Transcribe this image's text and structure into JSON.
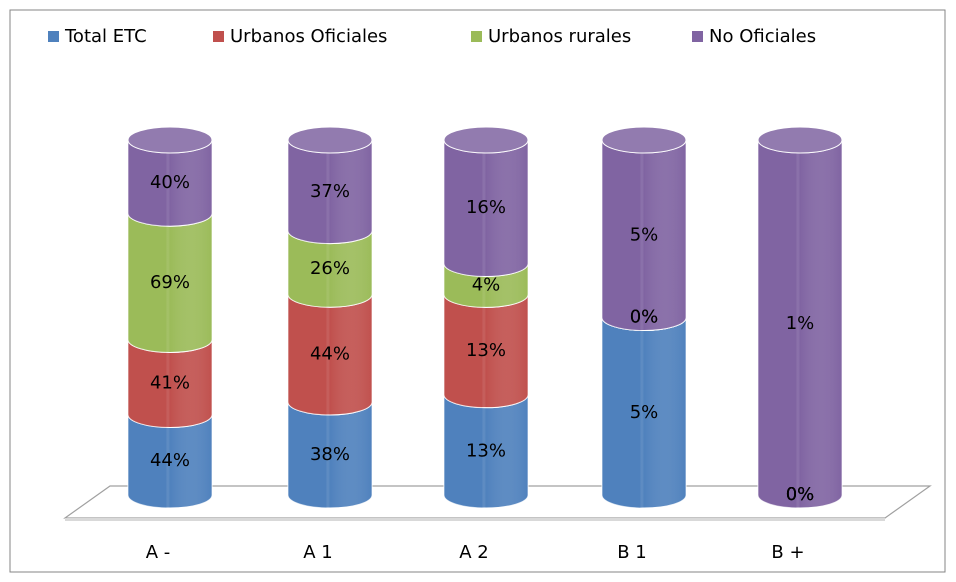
{
  "chart_data": {
    "type": "cylinder_stacked_percent",
    "categories": [
      "A -",
      "A 1",
      "A 2",
      "B 1",
      "B +"
    ],
    "series": [
      {
        "name": "Total ETC",
        "color": "#4f81bd",
        "values": [
          44,
          38,
          13,
          5,
          0
        ],
        "value_labels": [
          "44%",
          "38%",
          "13%",
          "5%",
          "0%"
        ]
      },
      {
        "name": "Urbanos Oficiales",
        "color": "#c0504d",
        "values": [
          41,
          44,
          13,
          0,
          0
        ],
        "value_labels": [
          "41%",
          "44%",
          "13%",
          "0%",
          "0%"
        ]
      },
      {
        "name": "Urbanos rurales",
        "color": "#9bbb59",
        "values": [
          69,
          26,
          4,
          0,
          0
        ],
        "value_labels": [
          "69%",
          "26%",
          "4%",
          "0%",
          "0%"
        ]
      },
      {
        "name": "No Oficiales",
        "color": "#8064a2",
        "values": [
          40,
          37,
          16,
          5,
          1
        ],
        "value_labels": [
          "40%",
          "37%",
          "16%",
          "5%",
          "1%"
        ]
      }
    ],
    "legend": "top"
  }
}
